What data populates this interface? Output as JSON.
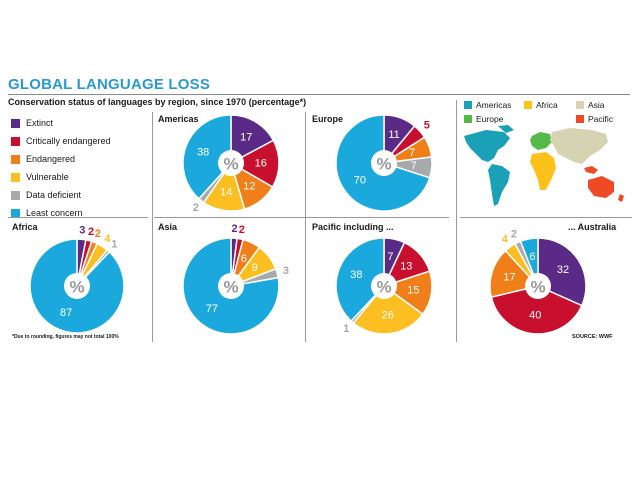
{
  "title": "GLOBAL LANGUAGE LOSS",
  "subtitle": "Conservation status of languages by region, since 1970 (percentage*)",
  "footnote": "*Due to rounding, figures may not total 100%",
  "source": "SOURCE: WWF",
  "center_symbol": "%",
  "colors": {
    "Extinct": "#5b2a86",
    "Critically endangered": "#c8102e",
    "Endangered": "#f07f1a",
    "Vulnerable": "#fbbf22",
    "Data deficient": "#a7a9ac",
    "Least concern": "#1ba9dd"
  },
  "legend": [
    "Extinct",
    "Critically endangered",
    "Endangered",
    "Vulnerable",
    "Data deficient",
    "Least concern"
  ],
  "map_legend": [
    {
      "label": "Americas",
      "color": "#1aa1b7"
    },
    {
      "label": "Africa",
      "color": "#fcc21b"
    },
    {
      "label": "Asia",
      "color": "#d6d3b3"
    },
    {
      "label": "Europe",
      "color": "#55b947"
    },
    {
      "label": "Pacific",
      "color": "#ef4a25"
    }
  ],
  "chart_data": [
    {
      "type": "pie",
      "title": "Americas",
      "categories": [
        "Extinct",
        "Critically endangered",
        "Endangered",
        "Vulnerable",
        "Data deficient",
        "Least concern"
      ],
      "values": [
        17,
        16,
        12,
        14,
        2,
        38
      ]
    },
    {
      "type": "pie",
      "title": "Europe",
      "categories": [
        "Extinct",
        "Critically endangered",
        "Endangered",
        "Vulnerable",
        "Data deficient",
        "Least concern"
      ],
      "values": [
        11,
        5,
        7,
        0,
        7,
        70
      ]
    },
    {
      "type": "pie",
      "title": "Africa",
      "categories": [
        "Extinct",
        "Critically endangered",
        "Endangered",
        "Vulnerable",
        "Data deficient",
        "Least concern"
      ],
      "values": [
        3,
        2,
        2,
        4,
        1,
        87
      ]
    },
    {
      "type": "pie",
      "title": "Asia",
      "categories": [
        "Extinct",
        "Critically endangered",
        "Endangered",
        "Vulnerable",
        "Data deficient",
        "Least concern"
      ],
      "values": [
        2,
        2,
        6,
        9,
        3,
        77
      ]
    },
    {
      "type": "pie",
      "title": "Pacific including ...",
      "categories": [
        "Extinct",
        "Critically endangered",
        "Endangered",
        "Vulnerable",
        "Data deficient",
        "Least concern"
      ],
      "values": [
        7,
        13,
        15,
        26,
        1,
        38
      ]
    },
    {
      "type": "pie",
      "title": "... Australia",
      "categories": [
        "Extinct",
        "Critically endangered",
        "Endangered",
        "Vulnerable",
        "Data deficient",
        "Least concern"
      ],
      "values": [
        32,
        40,
        17,
        4,
        2,
        6
      ]
    }
  ]
}
